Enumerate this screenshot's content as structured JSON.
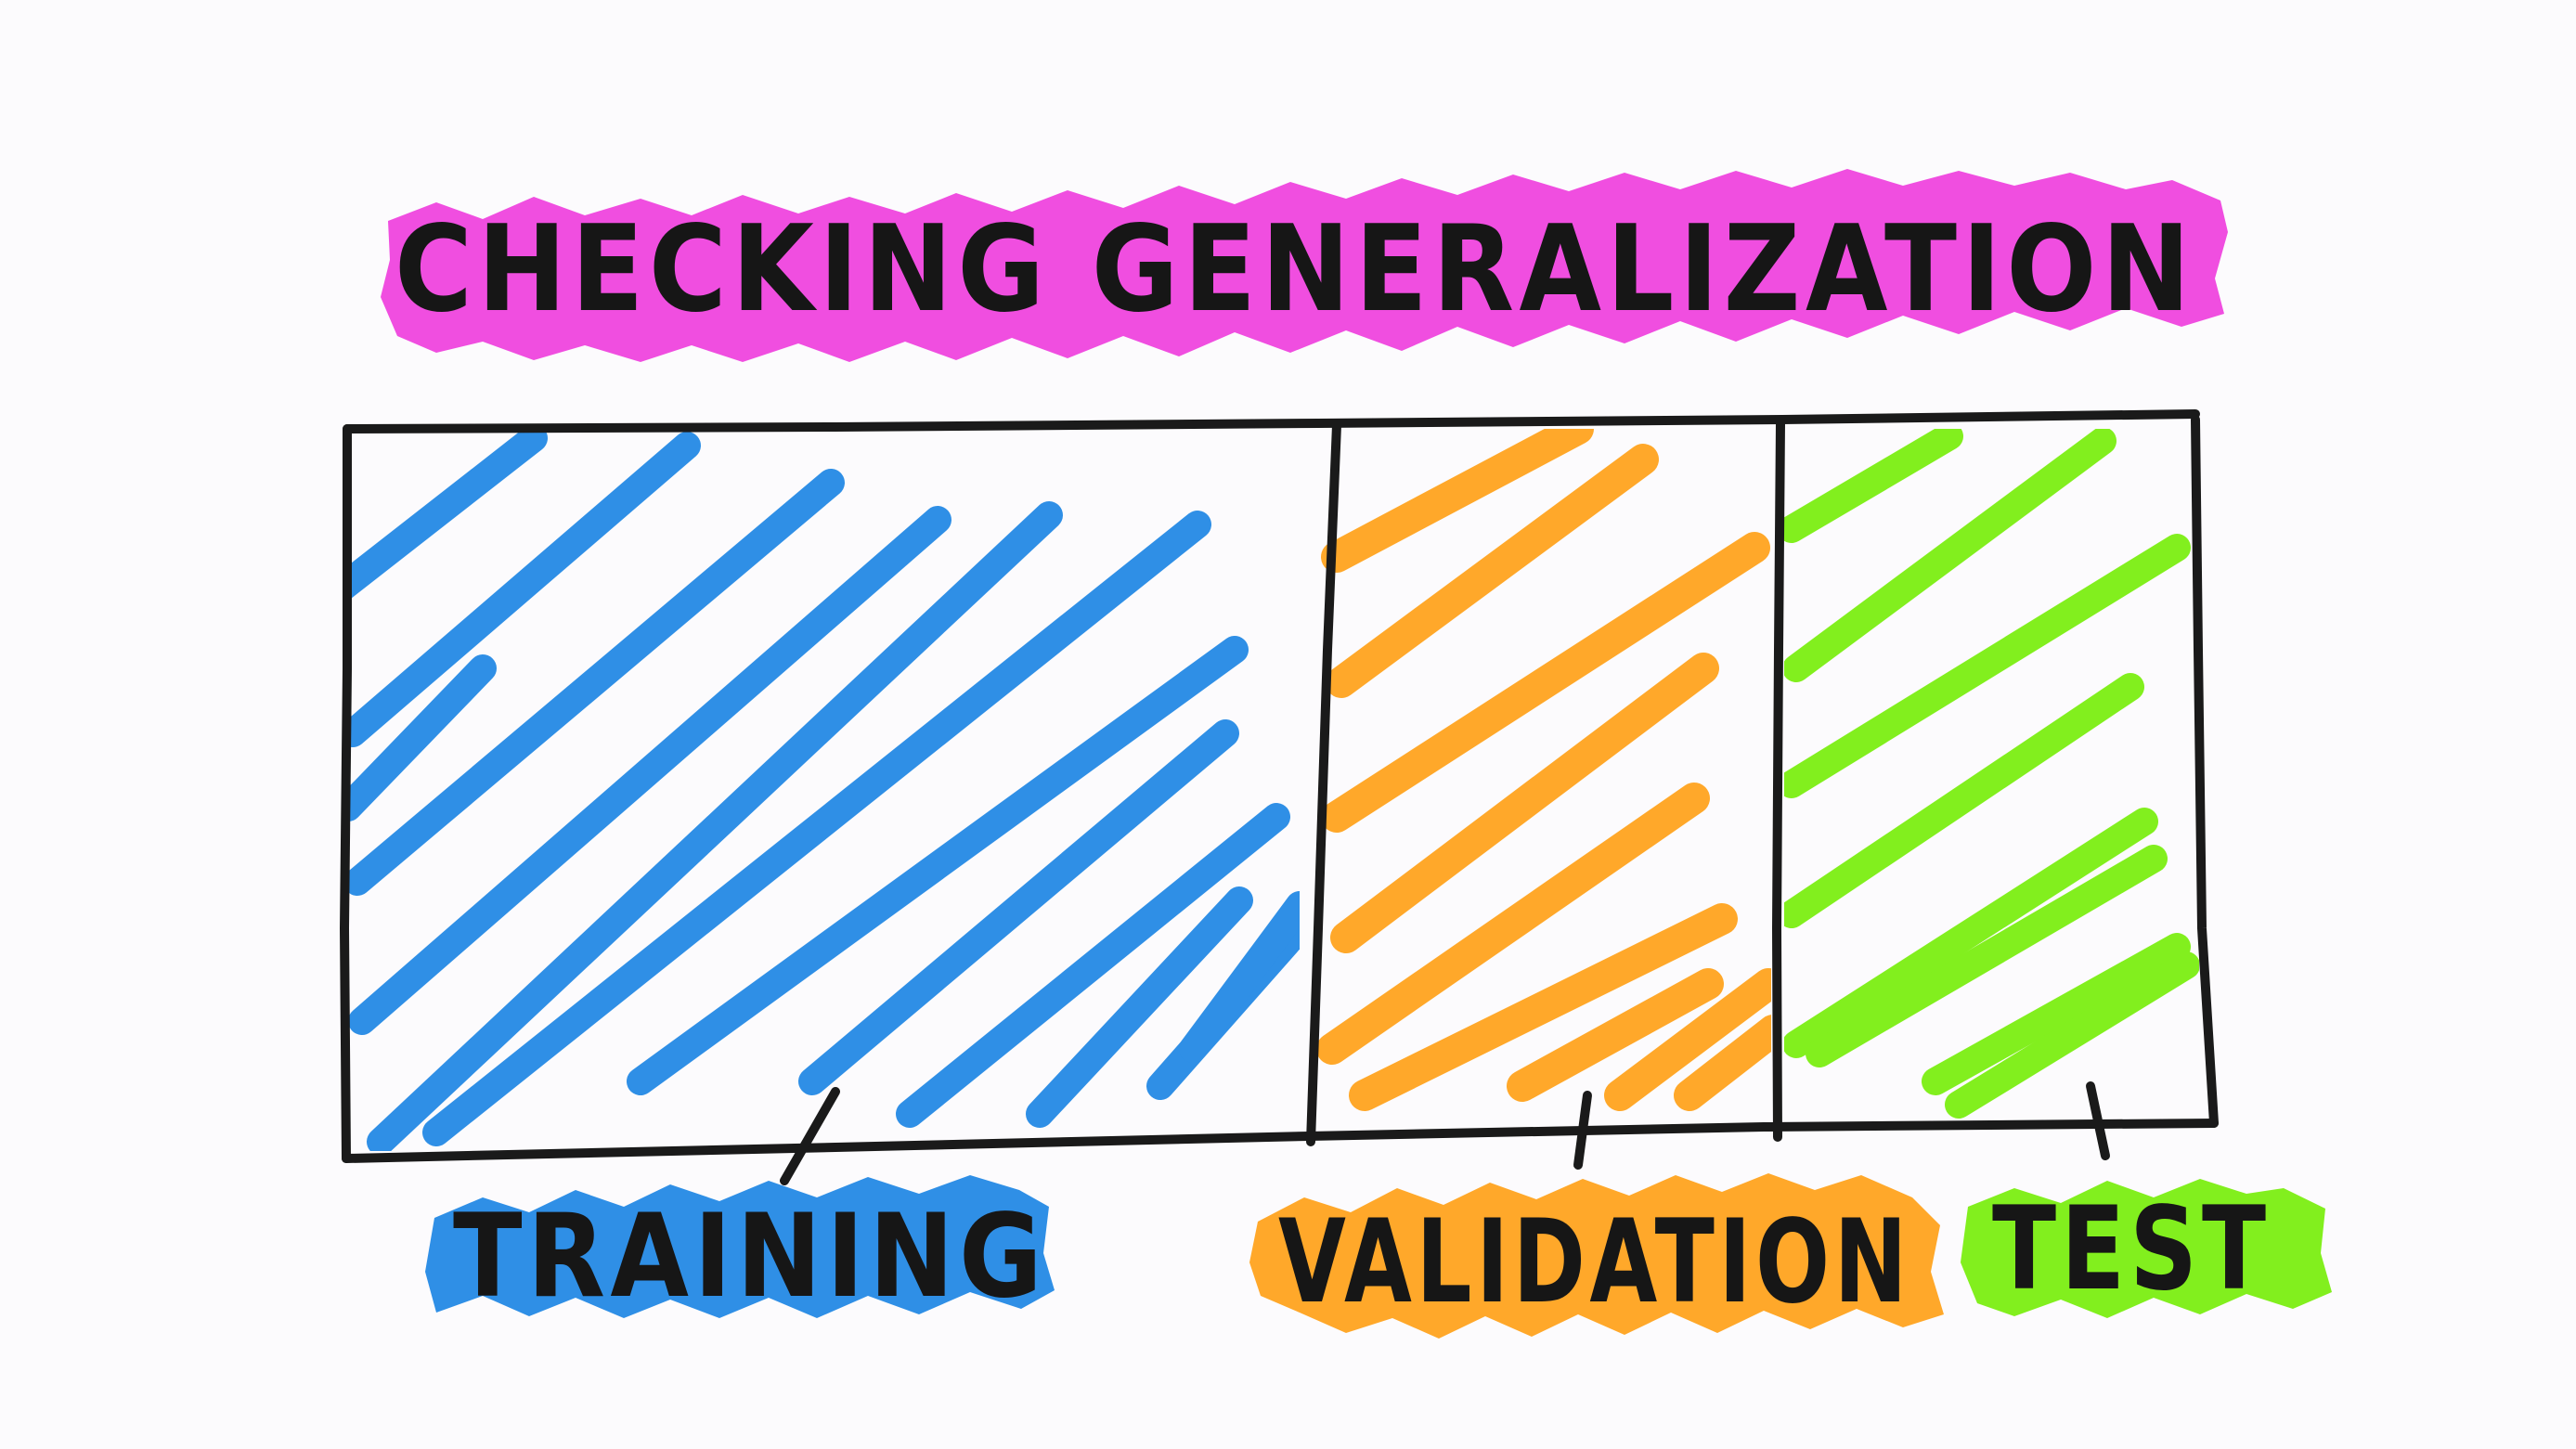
{
  "title": {
    "text": "CHECKING GENERALIZATION",
    "highlight_color": "#f04ee0"
  },
  "split": {
    "outline_color": "#1a1a1a",
    "sections": [
      {
        "id": "training",
        "label": "TRAINING",
        "color": "#2f8fe6"
      },
      {
        "id": "validation",
        "label": "VALIDATION",
        "color": "#ffa82a"
      },
      {
        "id": "test",
        "label": "TEST",
        "color": "#82ef1e"
      }
    ]
  },
  "background": "#fcfbfd"
}
